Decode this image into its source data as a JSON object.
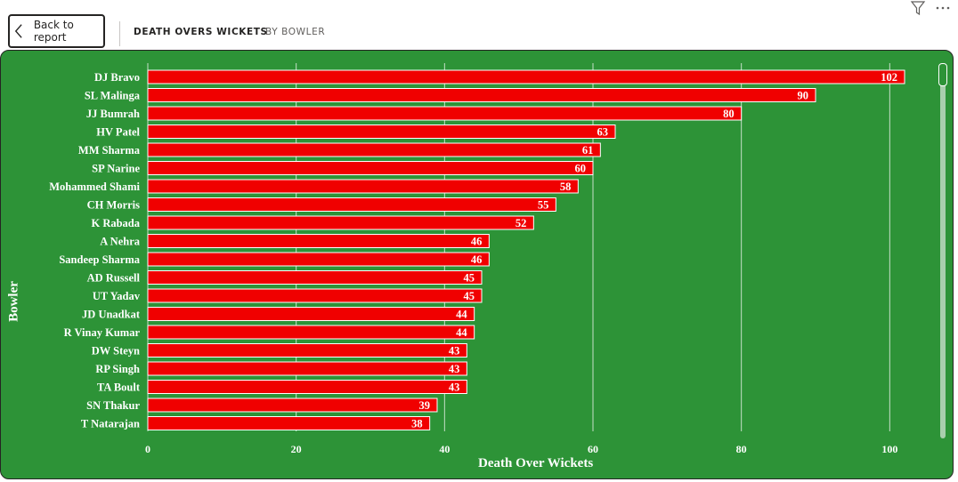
{
  "nav": {
    "back_label": "Back to report",
    "breadcrumb_active": "DEATH OVERS WICKETS",
    "breadcrumb_inactive": "BY BOWLER"
  },
  "icons": {
    "filter": "filter-icon",
    "more": "more-options-icon",
    "back": "chevron-left-icon"
  },
  "colors": {
    "background": "#2d9337",
    "bar": "#f00000",
    "bar_border": "#ffffff",
    "text": "#ffffff"
  },
  "chart_data": {
    "type": "bar",
    "orientation": "horizontal",
    "categories": [
      "DJ Bravo",
      "SL Malinga",
      "JJ Bumrah",
      "HV Patel",
      "MM Sharma",
      "SP Narine",
      "Mohammed Shami",
      "CH Morris",
      "K Rabada",
      "A Nehra",
      "Sandeep Sharma",
      "AD Russell",
      "UT Yadav",
      "JD Unadkat",
      "R Vinay Kumar",
      "DW Steyn",
      "RP Singh",
      "TA Boult",
      "SN Thakur",
      "T Natarajan"
    ],
    "values": [
      102,
      90,
      80,
      63,
      61,
      60,
      58,
      55,
      52,
      46,
      46,
      45,
      45,
      44,
      44,
      43,
      43,
      43,
      39,
      38
    ],
    "xlabel": "Death Over Wickets",
    "ylabel": "Bowler",
    "xlim": [
      0,
      105
    ],
    "xticks": [
      0,
      20,
      40,
      60,
      80,
      100
    ],
    "grid": true,
    "data_labels": true
  }
}
